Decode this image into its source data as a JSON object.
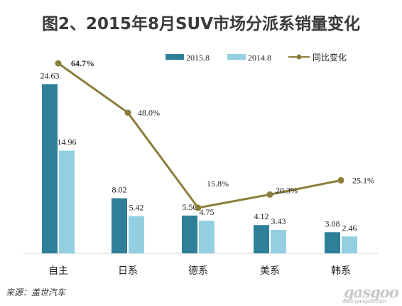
{
  "title": "图2、2015年8月SUV市场分派系销量变化",
  "source": "来源：盖世汽车",
  "watermark": {
    "logo": "gasgoo",
    "url": "auto.gasgoo.com"
  },
  "colors": {
    "s2015": "#2e7f98",
    "s2014": "#93cfe0",
    "line": "#8b7d3b"
  },
  "chart_data": {
    "type": "bar",
    "categories": [
      "自主",
      "日系",
      "德系",
      "美系",
      "韩系"
    ],
    "series": [
      {
        "name": "2015.8",
        "values": [
          24.63,
          8.02,
          5.5,
          4.12,
          3.08
        ],
        "labels": [
          "24.63",
          "8.02",
          "5.50",
          "4.12",
          "3.08"
        ]
      },
      {
        "name": "2014.8",
        "values": [
          14.96,
          5.42,
          4.75,
          3.43,
          2.46
        ],
        "labels": [
          "14.96",
          "5.42",
          "4.75",
          "3.43",
          "2.46"
        ]
      }
    ],
    "line_series": {
      "name": "同比变化",
      "values": [
        64.7,
        48.0,
        15.8,
        20.3,
        25.1
      ],
      "labels": [
        "64.7%",
        "48.0%",
        "15.8%",
        "20.3%",
        "25.1%"
      ]
    },
    "legend_position": "top-right",
    "grid": false
  }
}
